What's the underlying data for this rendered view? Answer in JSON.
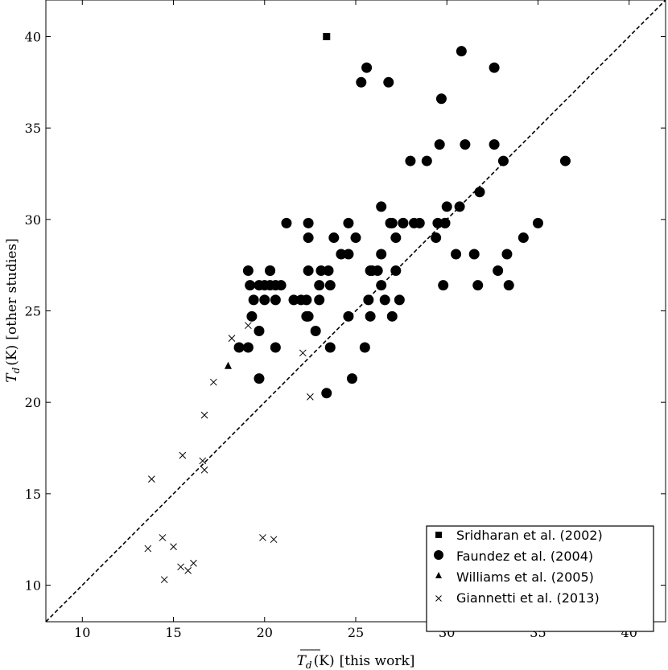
{
  "chart_data": {
    "type": "scatter",
    "xlabel_symbol": "T",
    "xlabel_sub": "d",
    "xlabel_unit": "(K)",
    "xlabel_rest": "[this work]",
    "ylabel_symbol": "T",
    "ylabel_sub": "d",
    "ylabel_unit": "(K)",
    "ylabel_rest": "[other studies]",
    "xlim": [
      8,
      42
    ],
    "ylim": [
      8,
      42
    ],
    "xticks": [
      10,
      15,
      20,
      25,
      30,
      35,
      40
    ],
    "yticks": [
      10,
      15,
      20,
      25,
      30,
      35,
      40
    ],
    "reference_line": "y = x (dashed)",
    "legend_position": "bottom-right",
    "series": [
      {
        "name": "Sridharan et al. (2002)",
        "marker": "square",
        "x": [
          23.4
        ],
        "y": [
          40.0
        ]
      },
      {
        "name": "Faundez et al. (2004)",
        "marker": "circle",
        "x": [
          25.6,
          25.3,
          26.8,
          30.8,
          32.6,
          29.7,
          29.6,
          31.0,
          32.6,
          28.0,
          28.9,
          30.7,
          33.1,
          36.5,
          29.9,
          26.4,
          31.8,
          21.2,
          22.4,
          26.9,
          27.6,
          28.2,
          29.9,
          35.0,
          22.4,
          24.6,
          25.0,
          23.8,
          24.2,
          24.6,
          29.4,
          34.2,
          19.1,
          20.3,
          22.4,
          23.1,
          23.5,
          25.9,
          26.4,
          27.2,
          30.5,
          31.5,
          33.3,
          19.2,
          19.7,
          20.0,
          20.3,
          20.6,
          20.9,
          23.0,
          23.6,
          25.8,
          26.2,
          32.8,
          29.8,
          31.7,
          33.4,
          19.4,
          20.0,
          20.6,
          21.6,
          22.0,
          22.3,
          23.0,
          25.7,
          26.4,
          27.4,
          19.3,
          22.3,
          22.4,
          24.6,
          25.8,
          27.0,
          19.7,
          22.8,
          18.6,
          19.1,
          20.6,
          23.6,
          25.5,
          19.7,
          24.8,
          23.4,
          26.6,
          27.0,
          27.2,
          27.6,
          28.5,
          29.5,
          30.0,
          20.3
        ],
        "y": [
          38.3,
          37.5,
          37.5,
          39.2,
          38.3,
          36.6,
          34.1,
          34.1,
          34.1,
          33.2,
          33.2,
          30.7,
          33.2,
          33.2,
          29.8,
          30.7,
          31.5,
          29.8,
          29.8,
          29.8,
          29.8,
          29.8,
          29.8,
          29.8,
          29.0,
          29.8,
          29.0,
          29.0,
          28.1,
          28.1,
          29.0,
          29.0,
          27.2,
          27.2,
          27.2,
          27.2,
          27.2,
          27.2,
          28.1,
          29.0,
          28.1,
          28.1,
          28.1,
          26.4,
          26.4,
          26.4,
          26.4,
          26.4,
          26.4,
          26.4,
          26.4,
          27.2,
          27.2,
          27.2,
          26.4,
          26.4,
          26.4,
          25.6,
          25.6,
          25.6,
          25.6,
          25.6,
          25.6,
          25.6,
          25.6,
          26.4,
          25.6,
          24.7,
          24.7,
          24.7,
          24.7,
          24.7,
          24.7,
          23.9,
          23.9,
          23.0,
          23.0,
          23.0,
          23.0,
          23.0,
          21.3,
          21.3,
          20.5,
          25.6,
          29.8,
          27.2,
          29.8,
          29.8,
          29.8,
          30.7,
          27.2
        ]
      },
      {
        "name": "Williams et al. (2005)",
        "marker": "triangle",
        "x": [
          18.0
        ],
        "y": [
          22.0
        ]
      },
      {
        "name": "Giannetti et al. (2013)",
        "marker": "x",
        "x": [
          13.8,
          15.5,
          16.6,
          16.7,
          16.7,
          17.2,
          18.2,
          19.1,
          20.8,
          22.1,
          22.5,
          13.6,
          14.4,
          15.0,
          14.5,
          15.4,
          15.8,
          16.1,
          19.9,
          20.5
        ],
        "y": [
          15.8,
          17.1,
          16.8,
          16.3,
          19.3,
          21.1,
          23.5,
          24.2,
          26.4,
          22.7,
          20.3,
          12.0,
          12.6,
          12.1,
          10.3,
          11.0,
          10.8,
          11.2,
          12.6,
          12.5
        ]
      }
    ]
  }
}
